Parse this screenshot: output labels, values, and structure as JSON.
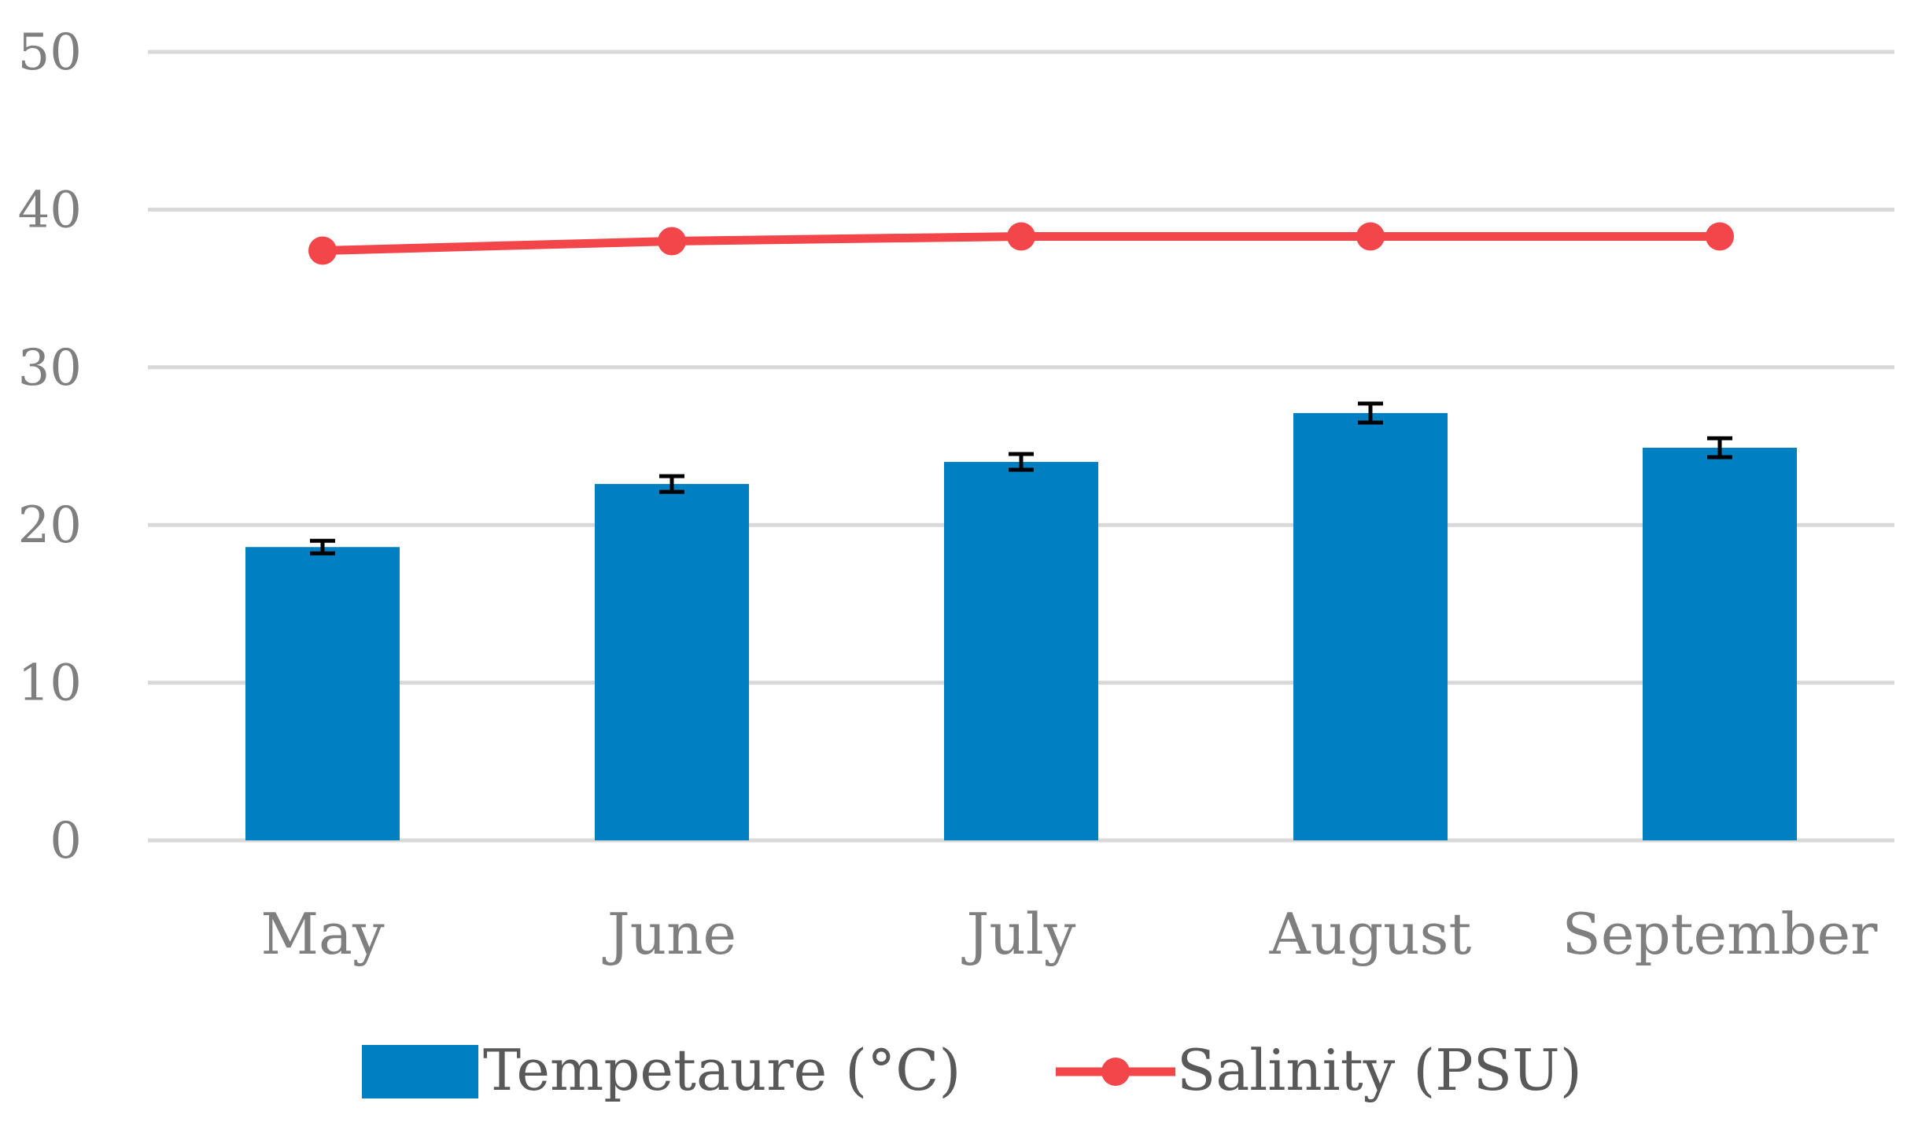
{
  "chart_data": {
    "type": "bar",
    "title": "",
    "xlabel": "",
    "ylabel": "",
    "ylim": [
      0,
      50
    ],
    "yticks": [
      0,
      10,
      20,
      30,
      40,
      50
    ],
    "grid": true,
    "legend_position": "bottom",
    "categories": [
      "May",
      "June",
      "July",
      "August",
      "September"
    ],
    "series": [
      {
        "name": "Tempetaure (°C)",
        "type": "bar",
        "color": "#0080C3",
        "values": [
          18.6,
          22.6,
          24.0,
          27.1,
          24.9
        ],
        "errors": [
          0.4,
          0.5,
          0.5,
          0.6,
          0.6
        ]
      },
      {
        "name": "Salinity (PSU)",
        "type": "line",
        "color": "#F2464A",
        "values": [
          37.4,
          38.0,
          38.3,
          38.3,
          38.3
        ]
      }
    ]
  }
}
